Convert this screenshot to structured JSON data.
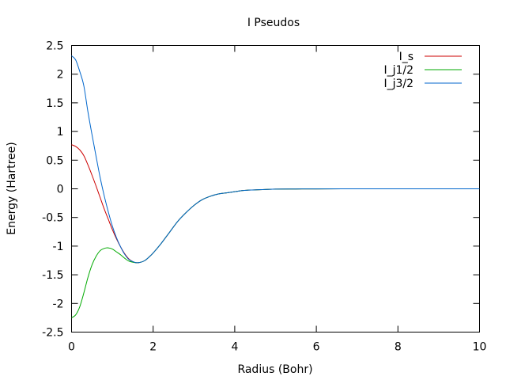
{
  "chart_data": {
    "type": "line",
    "title": "I Pseudos",
    "xlabel": "Radius (Bohr)",
    "ylabel": "Energy (Hartree)",
    "xlim": [
      0,
      10
    ],
    "ylim": [
      -2.5,
      2.5
    ],
    "xticks": [
      "0",
      "2",
      "4",
      "6",
      "8",
      "10"
    ],
    "yticks": [
      "2.5",
      "2",
      "1.5",
      "1",
      "0.5",
      "0",
      "-0.5",
      "-1",
      "-1.5",
      "-2",
      "-2.5"
    ],
    "grid": false,
    "legend_position": "top-right",
    "series": [
      {
        "name": "I_s",
        "color": "#cc0000",
        "x": [
          0,
          0.1,
          0.2,
          0.3,
          0.4,
          0.5,
          0.6,
          0.7,
          0.8,
          0.9,
          1.0,
          1.1,
          1.2,
          1.3,
          1.4,
          1.5,
          1.6,
          1.7,
          1.8,
          1.9,
          2.0,
          2.2,
          2.4,
          2.6,
          2.8,
          3.0,
          3.2,
          3.4,
          3.6,
          3.8,
          4.0,
          4.2,
          4.4,
          4.6,
          4.8,
          5.0,
          5.5,
          6.0,
          7.0,
          8.0,
          10.0
        ],
        "y": [
          0.77,
          0.74,
          0.68,
          0.58,
          0.42,
          0.24,
          0.05,
          -0.15,
          -0.35,
          -0.53,
          -0.71,
          -0.87,
          -1.01,
          -1.13,
          -1.22,
          -1.27,
          -1.29,
          -1.28,
          -1.25,
          -1.19,
          -1.12,
          -0.95,
          -0.76,
          -0.57,
          -0.42,
          -0.29,
          -0.19,
          -0.13,
          -0.09,
          -0.07,
          -0.05,
          -0.03,
          -0.02,
          -0.015,
          -0.01,
          -0.006,
          -0.003,
          -0.001,
          0,
          0,
          0
        ]
      },
      {
        "name": "I_j1/2",
        "color": "#00aa00",
        "x": [
          0,
          0.1,
          0.2,
          0.3,
          0.4,
          0.5,
          0.6,
          0.7,
          0.8,
          0.9,
          1.0,
          1.1,
          1.2,
          1.3,
          1.4,
          1.5,
          1.6,
          1.7,
          1.8,
          1.9,
          2.0,
          2.2,
          2.4,
          2.6,
          2.8,
          3.0,
          3.2,
          3.4,
          3.6,
          3.8,
          4.0,
          4.2,
          4.4,
          4.6,
          4.8,
          5.0,
          5.5,
          6.0,
          7.0,
          8.0,
          10.0
        ],
        "y": [
          -2.25,
          -2.2,
          -2.06,
          -1.82,
          -1.55,
          -1.33,
          -1.18,
          -1.08,
          -1.04,
          -1.03,
          -1.05,
          -1.1,
          -1.15,
          -1.21,
          -1.26,
          -1.28,
          -1.29,
          -1.28,
          -1.25,
          -1.19,
          -1.12,
          -0.95,
          -0.76,
          -0.57,
          -0.42,
          -0.29,
          -0.19,
          -0.13,
          -0.09,
          -0.07,
          -0.05,
          -0.03,
          -0.02,
          -0.015,
          -0.01,
          -0.006,
          -0.003,
          -0.001,
          0,
          0,
          0
        ]
      },
      {
        "name": "I_j3/2",
        "color": "#0066cc",
        "x": [
          0,
          0.1,
          0.2,
          0.3,
          0.4,
          0.5,
          0.6,
          0.7,
          0.8,
          0.9,
          1.0,
          1.1,
          1.2,
          1.3,
          1.4,
          1.5,
          1.6,
          1.7,
          1.8,
          1.9,
          2.0,
          2.2,
          2.4,
          2.6,
          2.8,
          3.0,
          3.2,
          3.4,
          3.6,
          3.8,
          4.0,
          4.2,
          4.4,
          4.6,
          4.8,
          5.0,
          5.5,
          6.0,
          7.0,
          8.0,
          10.0
        ],
        "y": [
          2.32,
          2.25,
          2.05,
          1.8,
          1.35,
          0.95,
          0.57,
          0.2,
          -0.12,
          -0.4,
          -0.65,
          -0.85,
          -1.01,
          -1.14,
          -1.23,
          -1.27,
          -1.29,
          -1.28,
          -1.25,
          -1.19,
          -1.12,
          -0.95,
          -0.76,
          -0.57,
          -0.42,
          -0.29,
          -0.19,
          -0.13,
          -0.09,
          -0.07,
          -0.05,
          -0.03,
          -0.02,
          -0.015,
          -0.01,
          -0.006,
          -0.003,
          -0.001,
          0,
          0,
          0
        ]
      }
    ]
  }
}
